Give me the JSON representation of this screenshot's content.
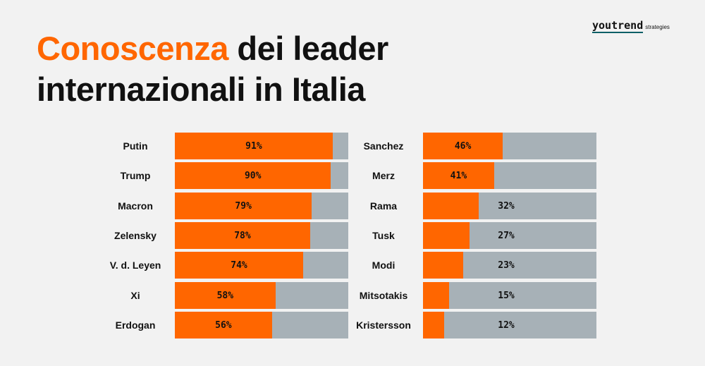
{
  "title": {
    "accent": "Conoscenza",
    "rest_line1": " dei leader",
    "line2": "internazionali in Italia"
  },
  "logo": {
    "word": "youtrend",
    "sub": "strategies"
  },
  "colors": {
    "known": "#ff6600",
    "remainder": "#a7b1b7",
    "background": "#f2f2f2"
  },
  "chart_data": [
    {
      "type": "bar",
      "orientation": "horizontal",
      "stacked_to": 100,
      "categories": [
        "Putin",
        "Trump",
        "Macron",
        "Zelensky",
        "V. d. Leyen",
        "Xi",
        "Erdogan"
      ],
      "values": [
        91,
        90,
        79,
        78,
        74,
        58,
        56
      ],
      "labels": [
        "91%",
        "90%",
        "79%",
        "78%",
        "74%",
        "58%",
        "56%"
      ],
      "xlim": [
        0,
        100
      ]
    },
    {
      "type": "bar",
      "orientation": "horizontal",
      "stacked_to": 100,
      "categories": [
        "Sanchez",
        "Merz",
        "Rama",
        "Tusk",
        "Modi",
        "Mitsotakis",
        "Kristersson"
      ],
      "values": [
        46,
        41,
        32,
        27,
        23,
        15,
        12
      ],
      "labels": [
        "46%",
        "41%",
        "32%",
        "27%",
        "23%",
        "15%",
        "12%"
      ],
      "xlim": [
        0,
        100
      ]
    }
  ]
}
